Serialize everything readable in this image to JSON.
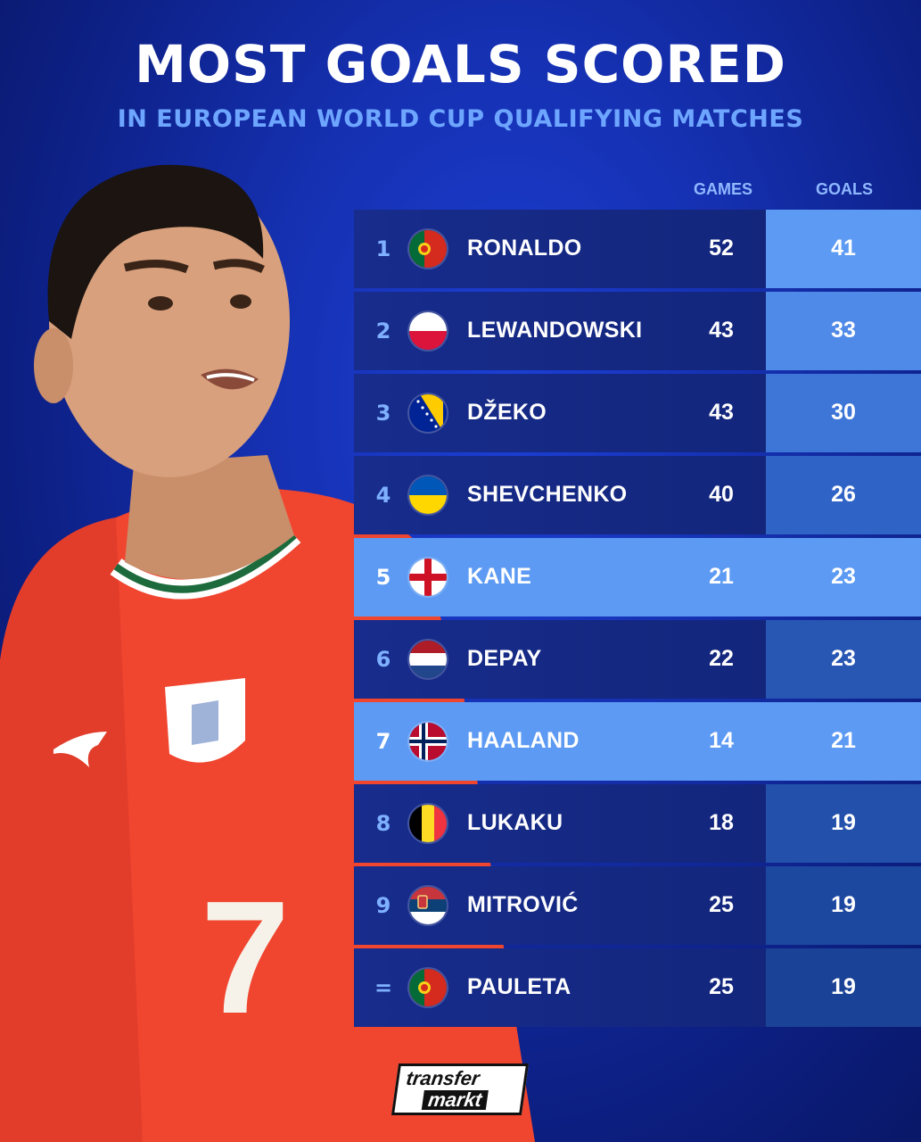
{
  "header": {
    "title": "MOST GOALS SCORED",
    "subtitle": "IN EUROPEAN WORLD CUP QUALIFYING MATCHES"
  },
  "columns": {
    "games": "GAMES",
    "goals": "GOALS"
  },
  "rows": [
    {
      "rank": "1",
      "flag": "portugal-flag",
      "name": "RONALDO",
      "games": "52",
      "goals": "41",
      "highlight_goals": true
    },
    {
      "rank": "2",
      "flag": "poland-flag",
      "name": "LEWANDOWSKI",
      "games": "43",
      "goals": "33"
    },
    {
      "rank": "3",
      "flag": "bosnia-flag",
      "name": "DŽEKO",
      "games": "43",
      "goals": "30"
    },
    {
      "rank": "4",
      "flag": "ukraine-flag",
      "name": "SHEVCHENKO",
      "games": "40",
      "goals": "26"
    },
    {
      "rank": "5",
      "flag": "england-flag",
      "name": "KANE",
      "games": "21",
      "goals": "23",
      "highlight": true
    },
    {
      "rank": "6",
      "flag": "netherlands-flag",
      "name": "DEPAY",
      "games": "22",
      "goals": "23"
    },
    {
      "rank": "7",
      "flag": "norway-flag",
      "name": "HAALAND",
      "games": "14",
      "goals": "21",
      "highlight": true
    },
    {
      "rank": "8",
      "flag": "belgium-flag",
      "name": "LUKAKU",
      "games": "18",
      "goals": "19"
    },
    {
      "rank": "9",
      "flag": "serbia-flag",
      "name": "MITROVIĆ",
      "games": "25",
      "goals": "19"
    },
    {
      "rank": "=",
      "flag": "portugal-flag",
      "name": "PAULETA",
      "games": "25",
      "goals": "19"
    }
  ],
  "logo": {
    "line1": "transfer",
    "line2": "markt"
  },
  "player": {
    "shirt_number": "7"
  },
  "colors": {
    "background": "#1530b0",
    "row_dark": "#172c8c",
    "highlight": "#5c9af3",
    "shirt": "#f0452f"
  }
}
